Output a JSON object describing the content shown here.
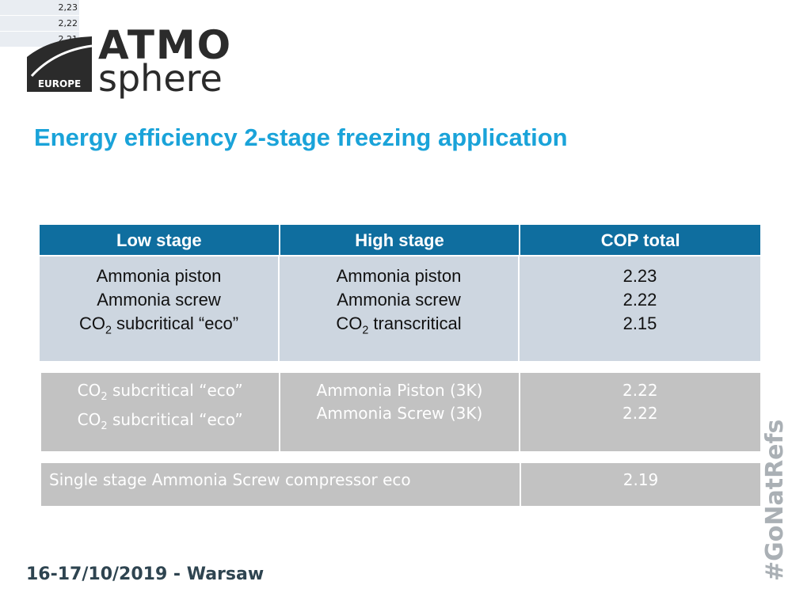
{
  "mini_values": [
    "2,23",
    "2,22",
    "2,21"
  ],
  "logo": {
    "badge_text": "EUROPE",
    "atmo": "ATMO",
    "sphere": "sphere"
  },
  "title": "Energy efficiency 2-stage freezing application",
  "table": {
    "headers": [
      "Low stage",
      "High stage",
      "COP total"
    ],
    "main_rows": {
      "low": [
        "Ammonia piston",
        "Ammonia screw",
        "CO2 subcritical “eco”"
      ],
      "high": [
        "Ammonia piston",
        "Ammonia screw",
        "CO2 transcritical"
      ],
      "cop": [
        "2.23",
        "2.22",
        "2.15"
      ]
    },
    "alt_rows": {
      "low": [
        "CO2 subcritical “eco”",
        "CO2 subcritical “eco”"
      ],
      "high": [
        "Ammonia Piston (3K)",
        "Ammonia Screw (3K)"
      ],
      "cop": [
        "2.22",
        "2.22"
      ]
    },
    "single_row": {
      "label": "Single stage Ammonia Screw compressor eco",
      "cop": "2.19"
    }
  },
  "footer": "16-17/10/2019 - Warsaw",
  "hashtag": "#GoNatRefs",
  "colors": {
    "title": "#1aa3d9",
    "header_bg": "#0f6e9f",
    "row_bg": "#cdd6e0",
    "grey_row_bg": "#c2c2c2"
  }
}
